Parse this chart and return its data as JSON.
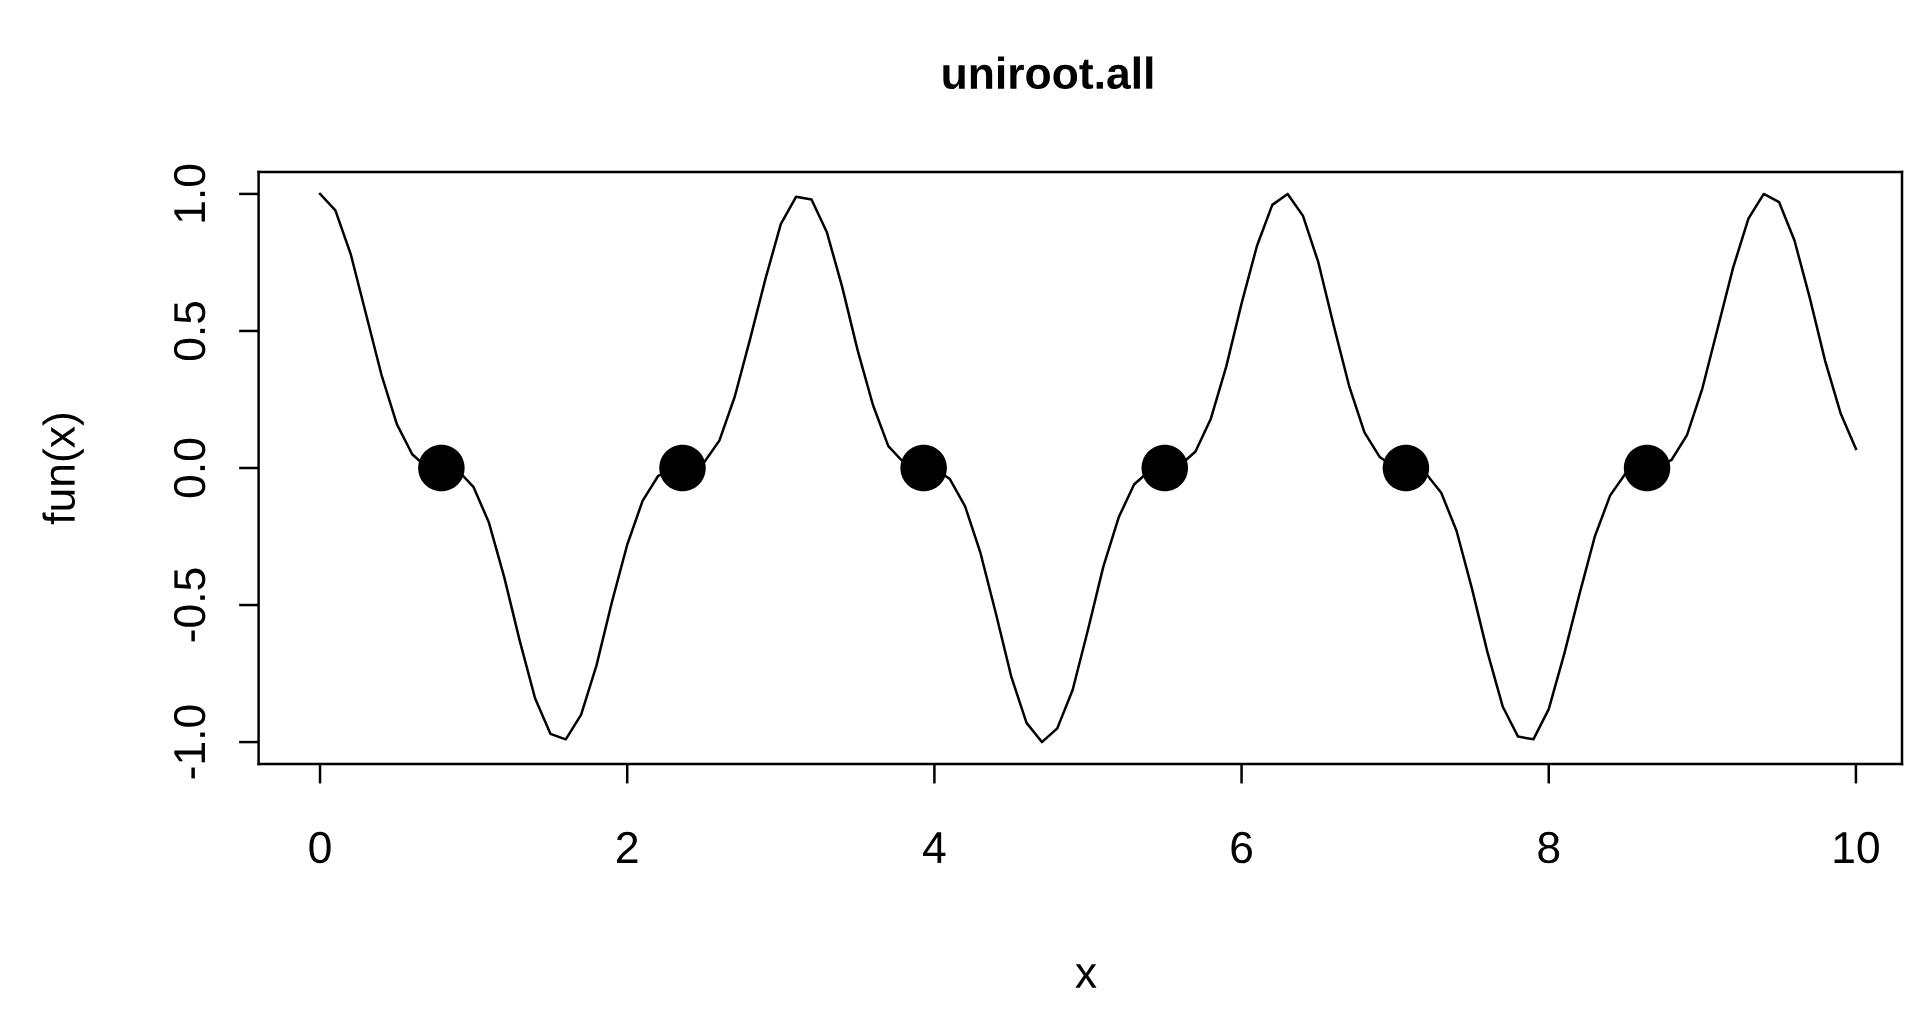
{
  "chart_data": {
    "type": "line",
    "title": "uniroot.all",
    "xlabel": "x",
    "ylabel": "fun(x)",
    "series": [
      {
        "color": "#000000",
        "line_style": "solid",
        "x": [
          0,
          0.1,
          0.2,
          0.3,
          0.4,
          0.5,
          0.6,
          0.7,
          0.8,
          0.9,
          1,
          1.1,
          1.2,
          1.3,
          1.4,
          1.5,
          1.6,
          1.7,
          1.8,
          1.9,
          2,
          2.1,
          2.2,
          2.3,
          2.4,
          2.5,
          2.6,
          2.7,
          2.8,
          2.9,
          3,
          3.1,
          3.2,
          3.3,
          3.4,
          3.5,
          3.6,
          3.7,
          3.8,
          3.9,
          4,
          4.1,
          4.2,
          4.3,
          4.4,
          4.5,
          4.6,
          4.7,
          4.8,
          4.9,
          5,
          5.1,
          5.2,
          5.3,
          5.4,
          5.5,
          5.6,
          5.7,
          5.8,
          5.9,
          6,
          6.1,
          6.2,
          6.3,
          6.4,
          6.5,
          6.6,
          6.7,
          6.8,
          6.9,
          7,
          7.1,
          7.2,
          7.3,
          7.4,
          7.5,
          7.6,
          7.7,
          7.8,
          7.9,
          8,
          8.1,
          8.2,
          8.3,
          8.4,
          8.5,
          8.6,
          8.7,
          8.8,
          8.9,
          9,
          9.1,
          9.2,
          9.3,
          9.4,
          9.5,
          9.6,
          9.7,
          9.8,
          9.9,
          10
        ],
        "values": [
          1,
          0.94,
          0.78,
          0.56,
          0.34,
          0.16,
          0.05,
          0,
          0,
          -0.01,
          -0.07,
          -0.2,
          -0.4,
          -0.63,
          -0.84,
          -0.97,
          -0.99,
          -0.9,
          -0.72,
          -0.49,
          -0.28,
          -0.12,
          -0.03,
          0,
          0,
          0.02,
          0.1,
          0.26,
          0.47,
          0.69,
          0.89,
          0.99,
          0.98,
          0.86,
          0.66,
          0.43,
          0.23,
          0.08,
          0.02,
          0,
          0,
          -0.04,
          -0.14,
          -0.31,
          -0.53,
          -0.76,
          -0.93,
          -1,
          -0.95,
          -0.81,
          -0.59,
          -0.36,
          -0.18,
          -0.06,
          -0.01,
          0,
          0.01,
          0.06,
          0.18,
          0.37,
          0.6,
          0.81,
          0.96,
          1,
          0.92,
          0.75,
          0.52,
          0.3,
          0.13,
          0.04,
          0,
          0,
          -0.02,
          -0.09,
          -0.23,
          -0.44,
          -0.67,
          -0.87,
          -0.98,
          -0.99,
          -0.88,
          -0.68,
          -0.46,
          -0.25,
          -0.1,
          -0.02,
          0,
          0,
          0.03,
          0.12,
          0.29,
          0.51,
          0.73,
          0.91,
          1,
          0.97,
          0.83,
          0.62,
          0.39,
          0.2,
          0.07
        ]
      },
      {
        "type": "scatter",
        "color": "#000000",
        "marker": "circle",
        "x": [
          0.79,
          2.36,
          3.93,
          5.5,
          7.07,
          8.64
        ],
        "values": [
          0,
          0,
          0,
          0,
          0,
          0
        ]
      }
    ],
    "xlim": [
      -0.4,
      10.3
    ],
    "ylim": [
      -1.08,
      1.08
    ],
    "xticks": [
      0,
      2,
      4,
      6,
      8,
      10
    ],
    "yticks": [
      {
        "value": -1,
        "label": "-1.0"
      },
      {
        "value": -0.5,
        "label": "-0.5"
      },
      {
        "value": 0,
        "label": "0.0"
      },
      {
        "value": 0.5,
        "label": "0.5"
      },
      {
        "value": 1,
        "label": "1.0"
      }
    ],
    "grid": false
  }
}
